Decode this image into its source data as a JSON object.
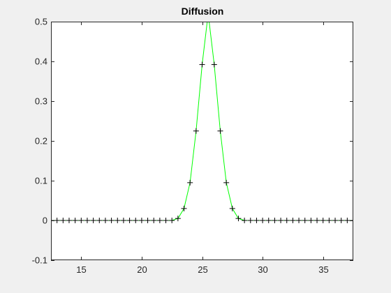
{
  "chart_data": {
    "type": "line",
    "title": "Diffusion",
    "xlabel": "",
    "ylabel": "",
    "xlim": [
      12.5,
      37.5
    ],
    "ylim": [
      -0.1,
      0.5
    ],
    "xticks": [
      15,
      20,
      25,
      30,
      35
    ],
    "yticks": [
      -0.1,
      0,
      0.1,
      0.2,
      0.3,
      0.4,
      0.5
    ],
    "ytick_labels": [
      "-0.1",
      "0",
      "0.1",
      "0.2",
      "0.3",
      "0.4",
      "0.5"
    ],
    "grid": false,
    "series": [
      {
        "line_color": "#00ff00",
        "marker": "+",
        "marker_color": "#000000",
        "x": [
          12.5,
          13,
          13.5,
          14,
          14.5,
          15,
          15.5,
          16,
          16.5,
          17,
          17.5,
          18,
          18.5,
          19,
          19.5,
          20,
          20.5,
          21,
          21.5,
          22,
          22.5,
          23,
          23.5,
          24,
          24.5,
          25,
          25.5,
          26,
          26.5,
          27,
          27.5,
          28,
          28.5,
          29,
          29.5,
          30,
          30.5,
          31,
          31.5,
          32,
          32.5,
          33,
          33.5,
          34,
          34.5,
          35,
          35.5,
          36,
          36.5,
          37,
          37.5
        ],
        "y": [
          0,
          0,
          0,
          0,
          0,
          0,
          0,
          0,
          0,
          0,
          0,
          0,
          0,
          0,
          0,
          0,
          0,
          0,
          0,
          0,
          0,
          0.005,
          0.03,
          0.095,
          0.225,
          0.392,
          0.52,
          0.392,
          0.225,
          0.095,
          0.03,
          0.005,
          0,
          0,
          0,
          0,
          0,
          0,
          0,
          0,
          0,
          0,
          0,
          0,
          0,
          0,
          0,
          0,
          0,
          0,
          0
        ]
      }
    ]
  }
}
